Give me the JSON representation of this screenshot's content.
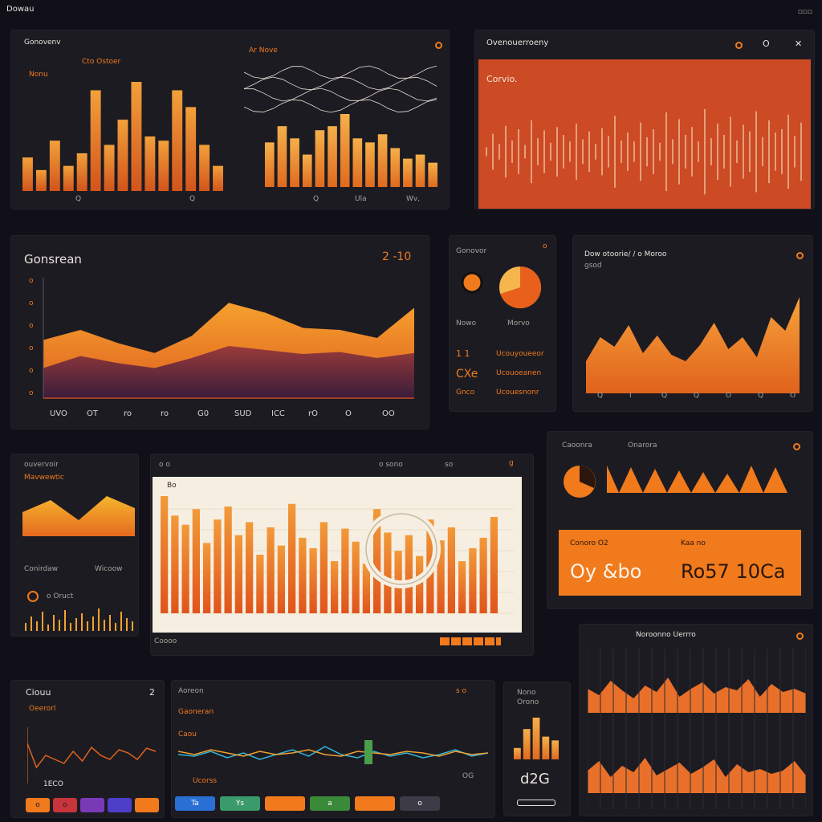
{
  "app": {
    "title": "Dowau"
  },
  "window_controls": "▫▫▫",
  "colors": {
    "bg": "#111018",
    "panel": "#1c1b22",
    "accent": "#f07a1c",
    "accent_red": "#d24a22",
    "cream": "#f6efe1"
  },
  "p1": {
    "title": "Gonovenv",
    "sub1": "Cto Ostoer",
    "sub2": "Nonu",
    "sub3": "Ar Nove",
    "corner": "o",
    "bars_a": [
      40,
      25,
      60,
      30,
      45,
      120,
      55,
      85,
      130,
      65,
      60,
      120,
      100,
      55,
      30
    ],
    "ticks_a": [
      "Q",
      "Q"
    ],
    "bars_b": [
      55,
      75,
      60,
      40,
      70,
      75,
      90,
      60,
      55,
      65,
      48,
      35,
      40,
      30
    ],
    "ticks_b": [
      "Q",
      "Ula",
      "Wv,"
    ]
  },
  "p2": {
    "title": "Ovenouerroeny",
    "icons": [
      "o",
      "O",
      "✕"
    ],
    "label": "Corvio.",
    "wave": [
      8,
      32,
      14,
      46,
      20,
      40,
      12,
      56,
      24,
      38,
      16,
      44,
      30,
      18,
      50,
      22,
      36,
      14,
      42,
      28,
      64,
      20,
      34,
      18,
      52,
      26,
      40,
      16,
      70,
      22,
      58,
      30,
      44,
      18,
      76,
      24,
      50,
      30,
      62,
      20,
      48,
      36,
      72,
      26,
      56,
      34,
      40,
      66,
      28,
      52
    ]
  },
  "p3": {
    "title": "Gonsrean",
    "range": "2 -10",
    "yticks": [
      "o",
      "o",
      "o",
      "o",
      "o",
      "o"
    ],
    "xticks": [
      "UVO",
      "OT",
      "ro",
      "ro",
      "G0",
      "SUD",
      "ICC",
      "rO",
      "O",
      "OO"
    ],
    "front": [
      58,
      68,
      55,
      45,
      62,
      95,
      85,
      70,
      68,
      60,
      90
    ],
    "back": [
      30,
      42,
      35,
      30,
      40,
      52,
      48,
      44,
      46,
      40,
      45
    ]
  },
  "p4": {
    "title": "Gonovor",
    "corner": "o",
    "pie_value": 0.7,
    "labels": [
      "Nowo",
      "Morvo"
    ],
    "rows": [
      "Ucouyoueeor",
      "Ucouoeanen",
      "Ucouesnonr"
    ],
    "prefix": [
      "1 1",
      "CXe",
      "Gnco"
    ]
  },
  "p5": {
    "title": "Dow otoorie/ / o Moroo",
    "sub": "gsod",
    "corner": "o",
    "peaks": [
      40,
      70,
      58,
      85,
      50,
      72,
      48,
      40,
      60,
      88,
      55,
      70,
      45,
      95,
      78,
      120
    ],
    "xticks": [
      "Q",
      "I",
      "Q",
      "Q",
      "O",
      "Q",
      "O"
    ]
  },
  "p6": {
    "title": "ouvervoir",
    "sub": "Mavwewtic",
    "bars": [
      30,
      45,
      20,
      50,
      35
    ],
    "t1": "Conirdaw",
    "t2": "Wicoow",
    "t3": "o Oruct",
    "spikes": [
      10,
      18,
      12,
      24,
      8,
      20,
      14,
      26,
      10,
      16,
      22,
      12,
      18,
      28,
      14,
      20,
      10,
      24,
      16,
      12
    ]
  },
  "p7": {
    "title": "o o",
    "tabs": [
      "o sono",
      "so",
      "g"
    ],
    "label": "Bo",
    "bars": [
      90,
      75,
      68,
      80,
      54,
      72,
      82,
      60,
      70,
      45,
      66,
      52,
      84,
      58,
      50,
      70,
      40,
      65,
      55,
      38,
      80,
      62,
      48,
      60,
      44,
      72,
      56,
      66,
      40,
      50,
      58,
      74
    ],
    "footer": "Coooo"
  },
  "p8": {
    "title": "Caoonra",
    "title2": "Onarora",
    "corner": "o",
    "orange_values": [
      "Conoro O2",
      "Oy &bo",
      "Kaa no",
      "Ro57 10Ca"
    ]
  },
  "p9": {
    "title": "Noroonno Uerrro",
    "corner": "o",
    "row_a": [
      30,
      22,
      40,
      28,
      18,
      34,
      26,
      44,
      20,
      30,
      38,
      24,
      32,
      28,
      42,
      20,
      36,
      26,
      30,
      24
    ],
    "row_b": [
      28,
      40,
      20,
      34,
      26,
      44,
      22,
      30,
      38,
      24,
      32,
      42,
      20,
      36,
      26,
      30,
      24,
      28,
      40,
      22
    ]
  },
  "p10": {
    "title": "Ciouu",
    "corner": "2",
    "sub": "Oeerorl",
    "label": "1ECO",
    "line": [
      50,
      20,
      35,
      30,
      25,
      40,
      28,
      45,
      35,
      30,
      42,
      38,
      30,
      44,
      40
    ],
    "swatches": [
      "#f07a1c",
      "#c7353a",
      "#7a3ab8",
      "#4e3fc9",
      "#f07a1c"
    ],
    "swatch_labels": [
      "o",
      "o",
      "",
      ""
    ]
  },
  "p11": {
    "title": "Aoreon",
    "sub": "Gaoneran",
    "sub2": "Caou",
    "corner": "s o",
    "axis_label": "Ucorss",
    "value": "OG",
    "line_a": [
      30,
      28,
      34,
      26,
      32,
      24,
      30,
      36,
      28,
      40,
      30,
      26,
      34,
      28,
      32,
      26,
      30,
      36,
      28,
      32
    ],
    "line_b": [
      34,
      30,
      36,
      32,
      28,
      34,
      30,
      32,
      36,
      30,
      28,
      34,
      32,
      30,
      34,
      32,
      28,
      34,
      30,
      32
    ],
    "buttons": [
      {
        "label": "Ta",
        "color": "#2a6fd4"
      },
      {
        "label": "Ys",
        "color": "#3a9a6a"
      },
      {
        "label": "",
        "color": "#f07a1c"
      },
      {
        "label": "a",
        "color": "#3a8a3a"
      },
      {
        "label": "",
        "color": "#f07a1c"
      },
      {
        "label": "o",
        "color": "#3c3b46"
      },
      {
        "label": "",
        "color": "#1c1b22"
      }
    ]
  },
  "p12": {
    "title": "Nono",
    "sub": "Orono",
    "value": "d2G",
    "bars": [
      15,
      40,
      55,
      30,
      25
    ]
  }
}
